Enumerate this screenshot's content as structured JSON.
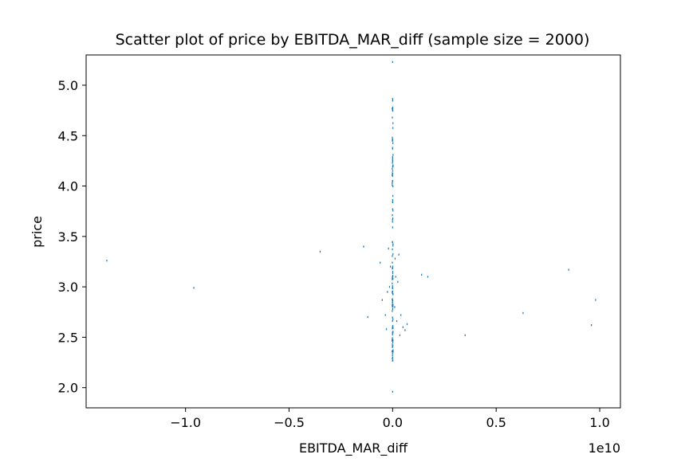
{
  "chart_data": {
    "type": "scatter",
    "title": "Scatter plot of price by EBITDA_MAR_diff (sample size = 2000)",
    "xlabel": "EBITDA_MAR_diff",
    "ylabel": "price",
    "x_offset_label": "1e10",
    "x_scale_factor": 10000000000,
    "xlim": [
      -1.48,
      1.1
    ],
    "ylim": [
      1.8,
      5.3
    ],
    "x_ticks": [
      {
        "value": -1.0,
        "label": "−1.0"
      },
      {
        "value": -0.5,
        "label": "−0.5"
      },
      {
        "value": 0.0,
        "label": "0.0"
      },
      {
        "value": 0.5,
        "label": "0.5"
      },
      {
        "value": 1.0,
        "label": "1.0"
      }
    ],
    "y_ticks": [
      {
        "value": 2.0,
        "label": "2.0"
      },
      {
        "value": 2.5,
        "label": "2.5"
      },
      {
        "value": 3.0,
        "label": "3.0"
      },
      {
        "value": 3.5,
        "label": "3.5"
      },
      {
        "value": 4.0,
        "label": "4.0"
      },
      {
        "value": 4.5,
        "label": "4.5"
      },
      {
        "value": 5.0,
        "label": "5.0"
      }
    ],
    "grid": false,
    "legend": "none",
    "marker_color": "#1f77b4",
    "points": [
      {
        "x": -1.38,
        "y": 3.26
      },
      {
        "x": -0.96,
        "y": 2.99
      },
      {
        "x": -0.35,
        "y": 3.35
      },
      {
        "x": -0.14,
        "y": 3.4
      },
      {
        "x": -0.12,
        "y": 2.7
      },
      {
        "x": -0.06,
        "y": 3.24
      },
      {
        "x": -0.05,
        "y": 2.87
      },
      {
        "x": -0.035,
        "y": 2.72
      },
      {
        "x": -0.03,
        "y": 2.58
      },
      {
        "x": -0.02,
        "y": 3.38
      },
      {
        "x": -0.015,
        "y": 3.0
      },
      {
        "x": 0.015,
        "y": 3.1
      },
      {
        "x": 0.02,
        "y": 2.66
      },
      {
        "x": 0.03,
        "y": 3.32
      },
      {
        "x": 0.035,
        "y": 2.52
      },
      {
        "x": 0.04,
        "y": 2.72
      },
      {
        "x": 0.05,
        "y": 2.6
      },
      {
        "x": 0.06,
        "y": 2.57
      },
      {
        "x": 0.07,
        "y": 2.63
      },
      {
        "x": 0.14,
        "y": 3.12
      },
      {
        "x": 0.17,
        "y": 3.1
      },
      {
        "x": 0.35,
        "y": 2.52
      },
      {
        "x": 0.63,
        "y": 2.74
      },
      {
        "x": 0.85,
        "y": 3.17
      },
      {
        "x": 0.96,
        "y": 2.62
      },
      {
        "x": 0.98,
        "y": 2.87
      },
      {
        "x": -0.025,
        "y": 2.95
      },
      {
        "x": 0.025,
        "y": 3.05
      },
      {
        "x": -0.01,
        "y": 3.2
      },
      {
        "x": 0.01,
        "y": 2.8
      },
      {
        "x": 0.012,
        "y": 3.28
      }
    ],
    "point_clusters": [
      {
        "x": 0.0,
        "y_min": 2.26,
        "y_max": 3.5,
        "count": 80
      },
      {
        "x": 0.0,
        "y_min": 3.6,
        "y_max": 4.9,
        "count": 40
      }
    ],
    "point_outliers_at_zero": [
      1.96,
      5.23,
      4.37,
      4.27,
      4.15,
      4.1,
      4.05,
      3.59,
      3.77,
      3.84
    ]
  }
}
